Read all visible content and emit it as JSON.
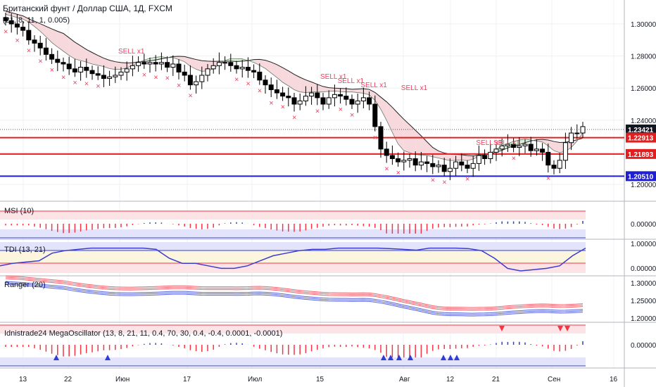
{
  "title": "Британский фунт / Доллар США, 1Д, FXCM",
  "main_indicator": "(21, 8, 11, 1, 0.005)",
  "colors": {
    "bull": "#ffffff",
    "bear": "#000000",
    "sell_marker": "#f04060",
    "red_line": "#e02020",
    "blue_line": "#1f1fd0",
    "channel_up": "#d8f0d8",
    "channel_down": "#f7d8dc",
    "osc_red": "#f23645",
    "osc_blue": "#2f3ed6"
  },
  "price_axis": {
    "ticks": [
      "1.30000",
      "1.28000",
      "1.26000",
      "1.24000",
      "1.22000",
      "1.20000"
    ],
    "labels": [
      {
        "text": "1.23421",
        "value": 1.23421,
        "style": "black"
      },
      {
        "text": "1.22913",
        "value": 1.22913,
        "style": "red"
      },
      {
        "text": "1.21893",
        "value": 1.21893,
        "style": "red"
      },
      {
        "text": "1.20510",
        "value": 1.2051,
        "style": "blue"
      }
    ]
  },
  "time_axis": [
    "13",
    "22",
    "Июн",
    "17",
    "Июл",
    "15",
    "Авг",
    "12",
    "21",
    "Сен",
    "16"
  ],
  "sell_label": "SELL x1",
  "panes": [
    {
      "id": "msi",
      "title": "MSI (10)",
      "ticks": [
        "0.00000"
      ]
    },
    {
      "id": "tdi",
      "title": "TDI (13, 21)",
      "ticks": [
        "1.00000",
        "0.00000"
      ]
    },
    {
      "id": "ranger",
      "title": "Ranger (20)",
      "ticks": [
        "1.30000",
        "1.25000",
        "1.20000"
      ]
    },
    {
      "id": "mega",
      "title": "Idnistrade24 MegaOscillator (13, 8, 21, 11, 0.4, 70, 30, 0.4, -0.4, 0.0001, -0.0001)",
      "ticks": [
        "0.00000"
      ]
    }
  ],
  "chart_data": {
    "type": "candlestick",
    "y_range": [
      1.19,
      1.31
    ],
    "horizontal_levels": [
      1.22913,
      1.21893,
      1.2051,
      1.23421
    ],
    "close_series": [
      1.302,
      1.3,
      1.298,
      1.296,
      1.29,
      1.288,
      1.285,
      1.281,
      1.278,
      1.276,
      1.275,
      1.272,
      1.27,
      1.273,
      1.271,
      1.269,
      1.268,
      1.266,
      1.267,
      1.268,
      1.27,
      1.272,
      1.274,
      1.276,
      1.275,
      1.276,
      1.275,
      1.276,
      1.273,
      1.275,
      1.27,
      1.268,
      1.262,
      1.264,
      1.268,
      1.272,
      1.274,
      1.276,
      1.276,
      1.274,
      1.272,
      1.273,
      1.271,
      1.27,
      1.265,
      1.262,
      1.259,
      1.257,
      1.255,
      1.254,
      1.25,
      1.252,
      1.255,
      1.257,
      1.254,
      1.25,
      1.254,
      1.256,
      1.255,
      1.253,
      1.25,
      1.252,
      1.254,
      1.25,
      1.236,
      1.222,
      1.218,
      1.216,
      1.214,
      1.215,
      1.216,
      1.212,
      1.214,
      1.213,
      1.211,
      1.212,
      1.208,
      1.21,
      1.214,
      1.212,
      1.21,
      1.213,
      1.218,
      1.216,
      1.22,
      1.222,
      1.224,
      1.225,
      1.223,
      1.224,
      1.225,
      1.221,
      1.222,
      1.22,
      1.212,
      1.21,
      1.215,
      1.226,
      1.232,
      1.232,
      1.236
    ]
  }
}
